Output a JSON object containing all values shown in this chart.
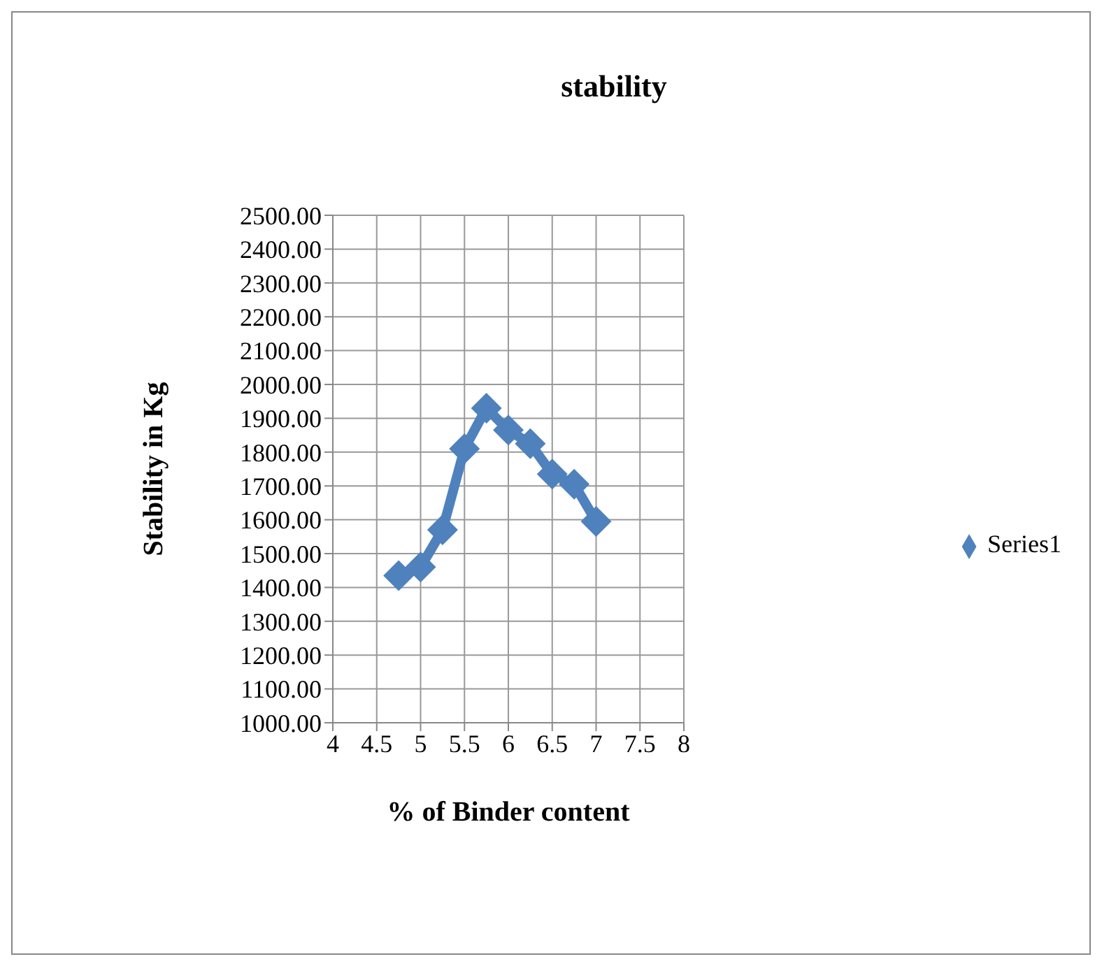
{
  "chart_data": {
    "type": "line",
    "title": "stability",
    "xlabel": "% of Binder content",
    "ylabel": "Stability in Kg",
    "x": [
      4.75,
      5.0,
      5.25,
      5.5,
      5.75,
      6.0,
      6.25,
      6.5,
      6.75,
      7.0
    ],
    "series": [
      {
        "name": "Series1",
        "color": "#4f81bd",
        "values": [
          1435,
          1460,
          1570,
          1810,
          1930,
          1865,
          1825,
          1735,
          1705,
          1595
        ]
      }
    ],
    "xlim": [
      4,
      8
    ],
    "xticks": [
      4,
      4.5,
      5,
      5.5,
      6,
      6.5,
      7,
      7.5,
      8
    ],
    "ylim": [
      1000,
      2500
    ],
    "yticks": [
      {
        "value": 1000,
        "label": "1000.00"
      },
      {
        "value": 1100,
        "label": "1100.00"
      },
      {
        "value": 1200,
        "label": "1200.00"
      },
      {
        "value": 1300,
        "label": "1300.00"
      },
      {
        "value": 1400,
        "label": "1400.00"
      },
      {
        "value": 1500,
        "label": "1500.00"
      },
      {
        "value": 1600,
        "label": "1600.00"
      },
      {
        "value": 1700,
        "label": "1700.00"
      },
      {
        "value": 1800,
        "label": "1800.00"
      },
      {
        "value": 1900,
        "label": "1900.00"
      },
      {
        "value": 2000,
        "label": "2000.00"
      },
      {
        "value": 2100,
        "label": "2100.00"
      },
      {
        "value": 2200,
        "label": "2200.00"
      },
      {
        "value": 2300,
        "label": "2300.00"
      },
      {
        "value": 2400,
        "label": "2400.00"
      },
      {
        "value": 2500,
        "label": "2500.00"
      }
    ],
    "grid": true,
    "legend": "right",
    "marker": "diamond",
    "line_style": "solid"
  }
}
